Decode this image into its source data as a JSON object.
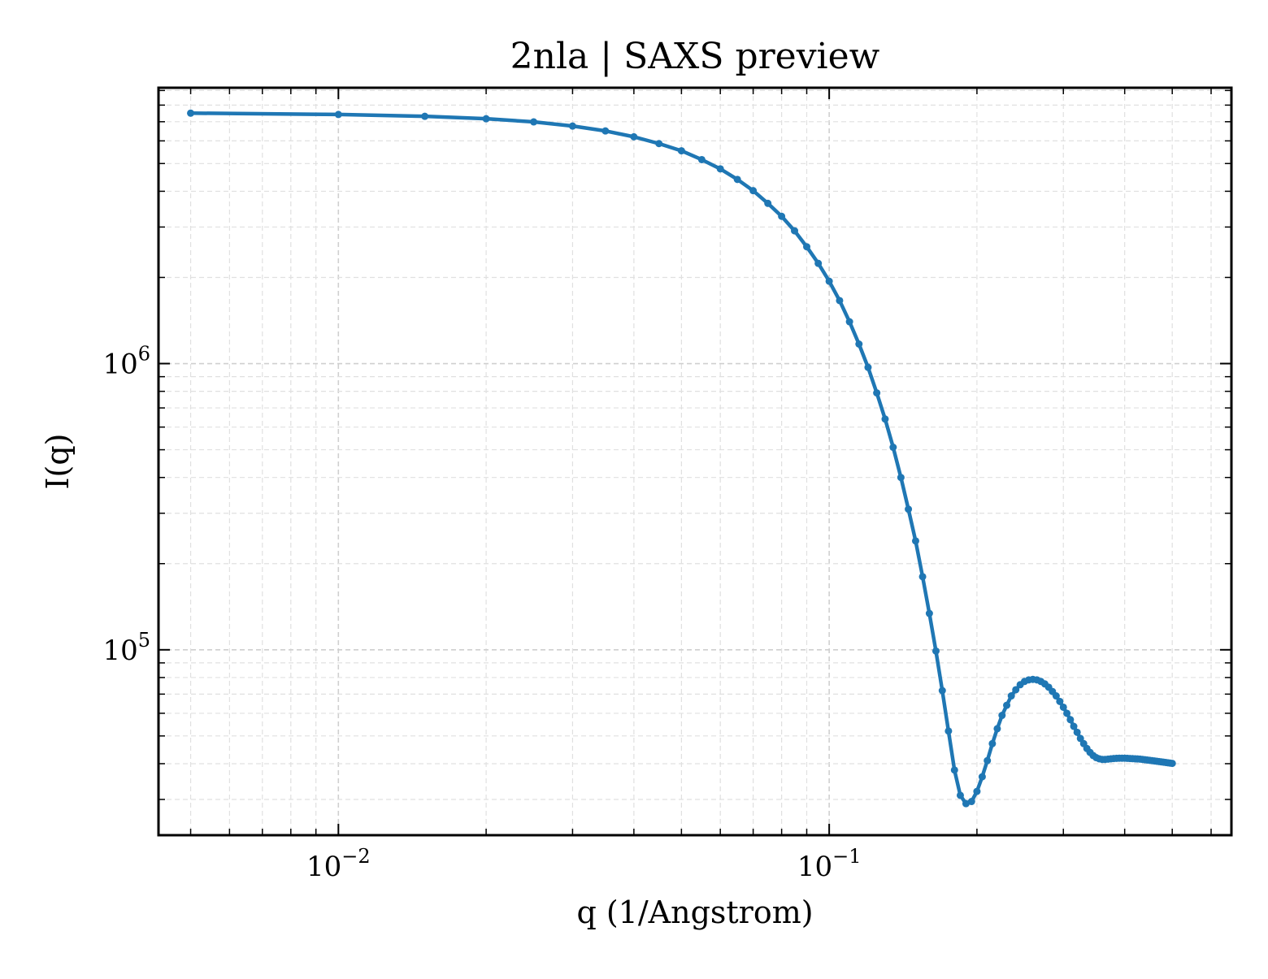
{
  "chart_data": {
    "type": "line",
    "title": "2nla | SAXS preview",
    "xlabel": "q (1/Angstrom)",
    "ylabel": "I(q)",
    "xscale": "log",
    "yscale": "log",
    "xlim": [
      0.0043,
      0.66
    ],
    "ylim": [
      22500,
      9200000
    ],
    "grid": true,
    "line_color": "#1f77b4",
    "marker": "circle",
    "x_ticks": [
      {
        "value": 0.01,
        "base": "10",
        "exp": "−2"
      },
      {
        "value": 0.1,
        "base": "10",
        "exp": "−1"
      }
    ],
    "y_ticks": [
      {
        "value": 100000,
        "base": "10",
        "exp": "5"
      },
      {
        "value": 1000000,
        "base": "10",
        "exp": "6"
      }
    ],
    "series": [
      {
        "x": [
          0.005,
          0.01,
          0.015,
          0.02,
          0.025,
          0.03,
          0.035,
          0.04,
          0.045,
          0.05,
          0.055,
          0.06,
          0.065,
          0.07,
          0.075,
          0.08,
          0.085,
          0.09,
          0.095,
          0.1,
          0.105,
          0.11,
          0.115,
          0.12,
          0.125,
          0.13,
          0.135,
          0.14,
          0.145,
          0.15,
          0.155,
          0.16,
          0.165,
          0.17,
          0.175,
          0.18,
          0.185,
          0.19,
          0.195,
          0.2,
          0.205,
          0.21,
          0.215,
          0.22,
          0.225,
          0.23,
          0.235,
          0.24,
          0.245,
          0.25,
          0.255,
          0.26,
          0.265,
          0.27,
          0.275,
          0.28,
          0.285,
          0.29,
          0.295,
          0.3,
          0.305,
          0.31,
          0.315,
          0.32,
          0.325,
          0.33,
          0.335,
          0.34,
          0.345,
          0.35,
          0.355,
          0.36,
          0.365,
          0.37,
          0.375,
          0.38,
          0.385,
          0.39,
          0.395,
          0.4,
          0.405,
          0.41,
          0.415,
          0.42,
          0.425,
          0.43,
          0.435,
          0.44,
          0.445,
          0.45,
          0.455,
          0.46,
          0.465,
          0.47,
          0.475,
          0.48,
          0.485,
          0.49,
          0.495,
          0.5
        ],
        "y": [
          7500000,
          7420000,
          7310000,
          7170000,
          6990000,
          6760000,
          6500000,
          6200000,
          5870000,
          5540000,
          5160000,
          4790000,
          4400000,
          4020000,
          3630000,
          3270000,
          2910000,
          2560000,
          2240000,
          1940000,
          1660000,
          1400000,
          1170000,
          970000,
          790000,
          640000,
          510000,
          400000,
          310000,
          240000,
          180000,
          134000,
          99000,
          72000,
          52000,
          38000,
          31000,
          29000,
          29500,
          32000,
          36000,
          41000,
          47000,
          53000,
          59000,
          64000,
          69000,
          72500,
          75500,
          77500,
          78500,
          78800,
          78500,
          77500,
          76000,
          74000,
          71500,
          69000,
          66000,
          63000,
          60000,
          57000,
          54000,
          51500,
          49000,
          47000,
          45200,
          43800,
          42700,
          42000,
          41600,
          41400,
          41400,
          41500,
          41600,
          41700,
          41750,
          41800,
          41800,
          41800,
          41750,
          41700,
          41650,
          41600,
          41550,
          41500,
          41400,
          41300,
          41200,
          41100,
          41000,
          40900,
          40800,
          40700,
          40600,
          40500,
          40400,
          40300,
          40200,
          40100
        ]
      }
    ]
  }
}
